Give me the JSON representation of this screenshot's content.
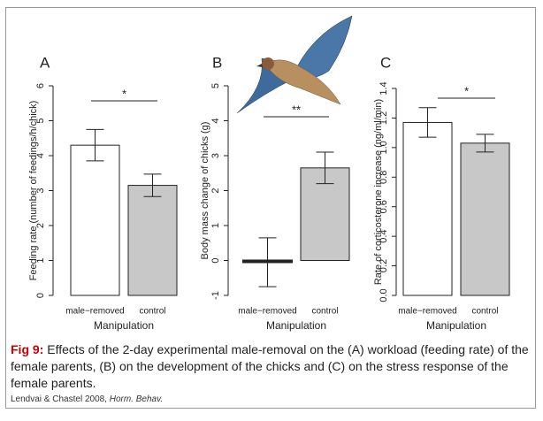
{
  "chart_data": [
    {
      "type": "bar",
      "panel": "A",
      "ylabel": "Feeding rate (number of feedings/h/chick)",
      "xlabel": "Manipulation",
      "categories": [
        "male−removed",
        "control"
      ],
      "values": [
        4.3,
        3.15
      ],
      "errors": [
        0.45,
        0.32
      ],
      "colors": [
        "#ffffff",
        "#c8c8c8"
      ],
      "ylim": [
        0,
        6
      ],
      "yticks": [
        0,
        1,
        2,
        3,
        4,
        5,
        6
      ],
      "significance": "*"
    },
    {
      "type": "bar",
      "panel": "B",
      "ylabel": "Body mass change of chicks (g)",
      "xlabel": "Manipulation",
      "categories": [
        "male−removed",
        "control"
      ],
      "values": [
        -0.05,
        2.65
      ],
      "errors": [
        0.7,
        0.45
      ],
      "colors": [
        "#ffffff",
        "#c8c8c8"
      ],
      "ylim": [
        -1,
        5
      ],
      "yticks": [
        -1,
        0,
        1,
        2,
        3,
        4,
        5
      ],
      "significance": "**"
    },
    {
      "type": "bar",
      "panel": "C",
      "ylabel": "Rate of corticosterone increase (ng/ml/min)",
      "xlabel": "Manipulation",
      "categories": [
        "male−removed",
        "control"
      ],
      "values": [
        1.17,
        1.03
      ],
      "errors": [
        0.1,
        0.06
      ],
      "colors": [
        "#ffffff",
        "#c8c8c8"
      ],
      "ylim": [
        0,
        1.4
      ],
      "yticks": [
        {
          "value": 0,
          "label": "0.0"
        },
        0.2,
        0.4,
        0.6,
        0.8,
        {
          "value": 1,
          "label": "1.0"
        },
        1.2,
        1.4
      ],
      "significance": "*"
    }
  ],
  "caption": {
    "label": "Fig 9:",
    "text": "Effects of the 2-day experimental male-removal on the (A) workload (feeding rate) of the female parents, (B) on the development of the chicks and (C) on the stress response of the female parents."
  },
  "citation": {
    "authors": "Lendvai & Chastel 2008,",
    "journal": "Horm. Behav."
  }
}
